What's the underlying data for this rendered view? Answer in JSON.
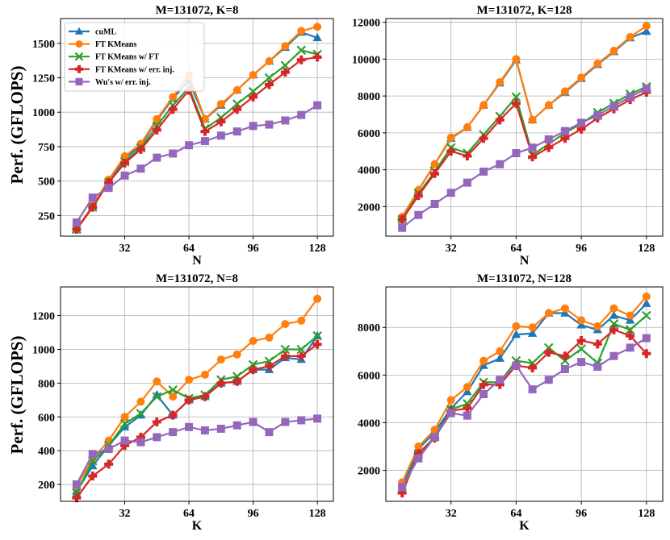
{
  "figure": {
    "ylabel": "Perf. (GFLOPS)",
    "legend": [
      {
        "name": "cuML",
        "color": "#1f77b4",
        "marker": "triangle"
      },
      {
        "name": "FT KMeans",
        "color": "#ff7f0e",
        "marker": "circle"
      },
      {
        "name": "FT KMeans w/ FT",
        "color": "#2ca02c",
        "marker": "x"
      },
      {
        "name": "FT KMeans w/ err. inj.",
        "color": "#d62728",
        "marker": "plus"
      },
      {
        "name": "Wu's w/ err. inj.",
        "color": "#9467bd",
        "marker": "square"
      }
    ]
  },
  "chart_data": [
    {
      "type": "line",
      "title": "M=131072, K=8",
      "xlabel": "N",
      "ylabel": "Perf. (GFLOPS)",
      "xlim": [
        0,
        136
      ],
      "ylim": [
        100,
        1680
      ],
      "xticks": [
        32,
        64,
        96,
        128
      ],
      "yticks": [
        250,
        500,
        750,
        1000,
        1250,
        1500
      ],
      "legend_position": "top-left",
      "x": [
        8,
        16,
        24,
        32,
        40,
        48,
        56,
        64,
        72,
        80,
        88,
        96,
        104,
        112,
        120,
        128
      ],
      "series": [
        {
          "name": "cuML",
          "values": [
            150,
            320,
            500,
            660,
            760,
            940,
            1100,
            1230,
            950,
            1050,
            1160,
            1270,
            1370,
            1470,
            1580,
            1540
          ]
        },
        {
          "name": "FT KMeans",
          "values": [
            150,
            320,
            510,
            680,
            770,
            950,
            1110,
            1270,
            950,
            1060,
            1160,
            1270,
            1370,
            1480,
            1590,
            1620
          ]
        },
        {
          "name": "FT KMeans w/ FT",
          "values": [
            150,
            310,
            490,
            640,
            740,
            900,
            1050,
            1180,
            880,
            960,
            1060,
            1150,
            1250,
            1340,
            1450,
            1420
          ]
        },
        {
          "name": "FT KMeans w/ err. inj.",
          "values": [
            150,
            310,
            490,
            630,
            730,
            870,
            1020,
            1160,
            860,
            930,
            1020,
            1110,
            1200,
            1290,
            1380,
            1400
          ]
        },
        {
          "name": "Wu's w/ err. inj.",
          "values": [
            200,
            380,
            450,
            540,
            590,
            670,
            700,
            760,
            790,
            830,
            860,
            900,
            910,
            940,
            980,
            1050
          ]
        }
      ]
    },
    {
      "type": "line",
      "title": "M=131072, K=128",
      "xlabel": "N",
      "ylabel": "",
      "xlim": [
        0,
        136
      ],
      "ylim": [
        400,
        12200
      ],
      "xticks": [
        32,
        64,
        96,
        128
      ],
      "yticks": [
        2000,
        4000,
        6000,
        8000,
        10000,
        12000
      ],
      "legend_position": "none",
      "x": [
        8,
        16,
        24,
        32,
        40,
        48,
        56,
        64,
        72,
        80,
        88,
        96,
        104,
        112,
        120,
        128
      ],
      "series": [
        {
          "name": "cuML",
          "values": [
            1400,
            2900,
            4300,
            5700,
            6300,
            7500,
            8700,
            9950,
            6700,
            7500,
            8200,
            8950,
            9700,
            10400,
            11150,
            11500
          ]
        },
        {
          "name": "FT KMeans",
          "values": [
            1450,
            2900,
            4300,
            5750,
            6300,
            7500,
            8750,
            10000,
            6700,
            7500,
            8250,
            9000,
            9750,
            10450,
            11200,
            11800
          ]
        },
        {
          "name": "FT KMeans w/ FT",
          "values": [
            1300,
            2700,
            3900,
            5200,
            4900,
            5900,
            6900,
            7950,
            4800,
            5400,
            6000,
            6500,
            7100,
            7600,
            8100,
            8500
          ]
        },
        {
          "name": "FT KMeans w/ err. inj.",
          "values": [
            1300,
            2600,
            3800,
            5000,
            4750,
            5700,
            6700,
            7600,
            4700,
            5200,
            5700,
            6200,
            6800,
            7300,
            7800,
            8200
          ]
        },
        {
          "name": "Wu's w/ err. inj.",
          "values": [
            850,
            1550,
            2150,
            2750,
            3300,
            3900,
            4300,
            4900,
            5200,
            5650,
            6100,
            6550,
            6950,
            7450,
            7950,
            8400
          ]
        }
      ]
    },
    {
      "type": "line",
      "title": "M=131072, N=8",
      "xlabel": "K",
      "ylabel": "Perf. (GFLOPS)",
      "xlim": [
        0,
        136
      ],
      "ylim": [
        100,
        1370
      ],
      "xticks": [
        32,
        64,
        96,
        128
      ],
      "yticks": [
        200,
        400,
        600,
        800,
        1000,
        1200
      ],
      "legend_position": "none",
      "x": [
        8,
        16,
        24,
        32,
        40,
        48,
        56,
        64,
        72,
        80,
        88,
        96,
        104,
        112,
        120,
        128
      ],
      "series": [
        {
          "name": "cuML",
          "values": [
            160,
            310,
            430,
            540,
            610,
            730,
            610,
            700,
            720,
            800,
            810,
            880,
            880,
            950,
            940,
            1080
          ]
        },
        {
          "name": "FT KMeans",
          "values": [
            190,
            350,
            460,
            600,
            690,
            810,
            720,
            820,
            850,
            940,
            970,
            1050,
            1070,
            1150,
            1170,
            1300
          ]
        },
        {
          "name": "FT KMeans w/ FT",
          "values": [
            150,
            340,
            430,
            560,
            620,
            720,
            760,
            710,
            730,
            820,
            840,
            910,
            930,
            1000,
            1000,
            1080
          ]
        },
        {
          "name": "FT KMeans w/ err. inj.",
          "values": [
            120,
            250,
            320,
            430,
            480,
            570,
            610,
            700,
            720,
            800,
            810,
            880,
            900,
            960,
            960,
            1030
          ]
        },
        {
          "name": "Wu's w/ err. inj.",
          "values": [
            200,
            380,
            410,
            460,
            450,
            480,
            510,
            540,
            520,
            530,
            550,
            570,
            510,
            570,
            580,
            590
          ]
        }
      ]
    },
    {
      "type": "line",
      "title": "M=131072, N=128",
      "xlabel": "K",
      "ylabel": "",
      "xlim": [
        0,
        136
      ],
      "ylim": [
        700,
        9700
      ],
      "xticks": [
        32,
        64,
        96,
        128
      ],
      "yticks": [
        2000,
        4000,
        6000,
        8000
      ],
      "legend_position": "none",
      "x": [
        8,
        16,
        24,
        32,
        40,
        48,
        56,
        64,
        72,
        80,
        88,
        96,
        104,
        112,
        120,
        128
      ],
      "series": [
        {
          "name": "cuML",
          "values": [
            1300,
            2900,
            3600,
            4600,
            5300,
            6400,
            6700,
            7700,
            7750,
            8600,
            8600,
            8100,
            7900,
            8500,
            8300,
            9000
          ]
        },
        {
          "name": "FT KMeans",
          "values": [
            1500,
            3000,
            3700,
            4950,
            5500,
            6600,
            7000,
            8050,
            8000,
            8600,
            8800,
            8300,
            8050,
            8800,
            8500,
            9300
          ]
        },
        {
          "name": "FT KMeans w/ FT",
          "values": [
            1200,
            2700,
            3400,
            4550,
            4800,
            5700,
            5700,
            6600,
            6500,
            7150,
            6600,
            7100,
            6500,
            8150,
            7900,
            8500
          ]
        },
        {
          "name": "FT KMeans w/ err. inj.",
          "values": [
            1050,
            2700,
            3350,
            4500,
            4600,
            5600,
            5600,
            6400,
            6300,
            6950,
            6800,
            7450,
            7300,
            7900,
            7650,
            6900
          ]
        },
        {
          "name": "Wu's w/ err. inj.",
          "values": [
            1300,
            2500,
            3400,
            4400,
            4300,
            5200,
            5800,
            6400,
            5400,
            5800,
            6250,
            6550,
            6350,
            6800,
            7150,
            7550
          ]
        }
      ]
    }
  ]
}
